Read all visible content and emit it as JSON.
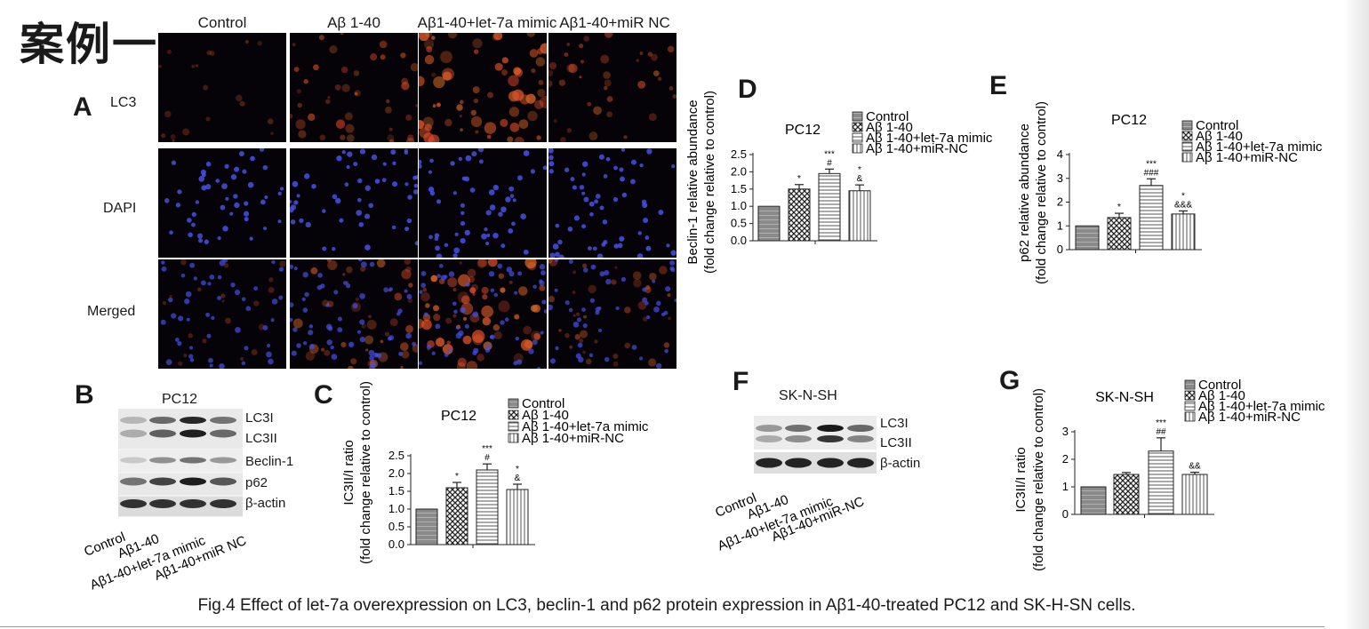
{
  "case_title": "案例一",
  "panels": {
    "A": "A",
    "B": "B",
    "C": "C",
    "D": "D",
    "E": "E",
    "F": "F",
    "G": "G"
  },
  "panel_a": {
    "columns": [
      "Control",
      "Aβ 1-40",
      "Aβ1-40+let-7a mimic",
      "Aβ1-40+miR NC"
    ],
    "rows": [
      "LC3",
      "DAPI",
      "Merged"
    ],
    "lc3_intensity": [
      0.15,
      0.55,
      0.95,
      0.45
    ]
  },
  "panel_b": {
    "title": "PC12",
    "bands": [
      "LC3I",
      "LC3II",
      "Beclin-1",
      "p62",
      "β-actin"
    ],
    "lanes": [
      "Control",
      "Aβ1-40",
      "Aβ1-40+let-7a mimic",
      "Aβ1-40+miR NC"
    ]
  },
  "panel_f": {
    "title": "SK-N-SH",
    "bands": [
      "LC3I",
      "LC3II",
      "β-actin"
    ],
    "lanes": [
      "Control",
      "Aβ1-40",
      "Aβ1-40+let-7a mimic",
      "Aβ1-40+miR-NC"
    ]
  },
  "chart_data": [
    {
      "panel": "C",
      "type": "bar",
      "title": "PC12",
      "ylabel": "IC3II/I ratio",
      "ylabel2": "(fold change relative to control)",
      "ylim": [
        0,
        2.5
      ],
      "ticks": [
        "0.0",
        "0.5",
        "1.0",
        "1.5",
        "2.0",
        "2.5"
      ],
      "categories": [
        "Control",
        "Aβ 1-40",
        "Aβ 1-40+let-7a mimic",
        "Aβ 1-40+miR-NC"
      ],
      "values": [
        1.0,
        1.6,
        2.1,
        1.55
      ],
      "errors": [
        0,
        0.15,
        0.17,
        0.15
      ],
      "annotations": [
        [],
        [
          "*"
        ],
        [
          "***",
          "#"
        ],
        [
          "*",
          "&"
        ]
      ]
    },
    {
      "panel": "D",
      "type": "bar",
      "title": "PC12",
      "ylabel": "Beclin-1 relative abundance",
      "ylabel2": "(fold change relative to control)",
      "ylim": [
        0,
        2.5
      ],
      "ticks": [
        "0.0",
        "0.5",
        "1.0",
        "1.5",
        "2.0",
        "2.5"
      ],
      "categories": [
        "Control",
        "Aβ 1-40",
        "Aβ 1-40+let-7a mimic",
        "Aβ 1-40+miR-NC"
      ],
      "values": [
        1.0,
        1.5,
        1.95,
        1.45
      ],
      "errors": [
        0,
        0.13,
        0.13,
        0.17
      ],
      "annotations": [
        [],
        [
          "*"
        ],
        [
          "***",
          "#"
        ],
        [
          "*",
          "&"
        ]
      ]
    },
    {
      "panel": "E",
      "type": "bar",
      "title": "PC12",
      "ylabel": "p62 relative abundance",
      "ylabel2": "(fold change relative to control)",
      "ylim": [
        0,
        4
      ],
      "ticks": [
        "0",
        "1",
        "2",
        "3",
        "4"
      ],
      "categories": [
        "Control",
        "Aβ 1-40",
        "Aβ 1-40+let-7a mimic",
        "Aβ 1-40+miR-NC"
      ],
      "values": [
        1.0,
        1.35,
        2.7,
        1.5
      ],
      "errors": [
        0,
        0.18,
        0.28,
        0.13
      ],
      "annotations": [
        [],
        [
          "*"
        ],
        [
          "***",
          "###"
        ],
        [
          "*",
          "&&&"
        ]
      ]
    },
    {
      "panel": "G",
      "type": "bar",
      "title": "SK-N-SH",
      "ylabel": "IC3II/I ratio",
      "ylabel2": "(fold change relative to control)",
      "ylim": [
        0,
        3
      ],
      "ticks": [
        "0",
        "1",
        "2",
        "3"
      ],
      "categories": [
        "Control",
        "Aβ 1-40",
        "Aβ 1-40+let-7a mimic",
        "Aβ 1-40+miR-NC"
      ],
      "values": [
        1.0,
        1.45,
        2.3,
        1.45
      ],
      "errors": [
        0,
        0.07,
        0.48,
        0.08
      ],
      "annotations": [
        [],
        [],
        [
          "***",
          "##"
        ],
        [
          "&&"
        ]
      ]
    }
  ],
  "caption": "Fig.4 Effect of let-7a overexpression on LC3, beclin-1 and p62 protein expression in Aβ1-40-treated PC12 and SK-H-SN cells."
}
